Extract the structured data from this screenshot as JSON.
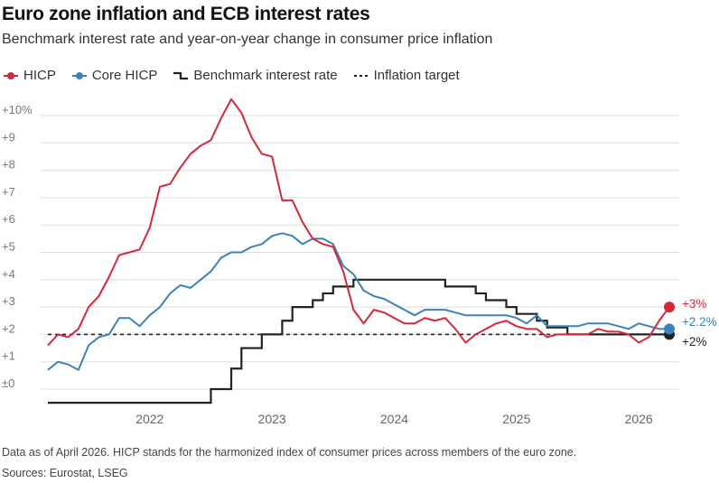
{
  "header": {
    "title": "Euro zone inflation and ECB interest rates",
    "subtitle": "Benchmark interest rate and year-on-year change in consumer price inflation"
  },
  "footer": {
    "note": "Data as of April 2026. HICP stands for the harmonized index of consumer prices across members of the euro zone.",
    "source": "Sources: Eurostat, LSEG"
  },
  "colors": {
    "hicp": "#d62839",
    "core": "#3a83b8",
    "rate": "#222222",
    "target": "#222222",
    "grid": "#dddddd"
  },
  "chart_data": {
    "type": "line",
    "title": "Euro zone inflation and ECB interest rates",
    "x_range": [
      "2021-03",
      "2026-04"
    ],
    "ylim": [
      -0.5,
      10.5
    ],
    "y_ticks": [
      {
        "value": 0,
        "label": "±0"
      },
      {
        "value": 1,
        "label": "+1"
      },
      {
        "value": 2,
        "label": "+2"
      },
      {
        "value": 3,
        "label": "+3"
      },
      {
        "value": 4,
        "label": "+4"
      },
      {
        "value": 5,
        "label": "+5"
      },
      {
        "value": 6,
        "label": "+6"
      },
      {
        "value": 7,
        "label": "+7"
      },
      {
        "value": 8,
        "label": "+8"
      },
      {
        "value": 9,
        "label": "+9"
      },
      {
        "value": 10,
        "label": "+10%"
      }
    ],
    "x_ticks": [
      {
        "value": "2022-01",
        "label": "2022"
      },
      {
        "value": "2023-01",
        "label": "2023"
      },
      {
        "value": "2024-01",
        "label": "2024"
      },
      {
        "value": "2025-01",
        "label": "2025"
      },
      {
        "value": "2026-01",
        "label": "2026"
      }
    ],
    "legend": {
      "position": "top-left"
    },
    "grid": {
      "horizontal": true,
      "vertical": false
    },
    "series": [
      {
        "name": "HICP",
        "key": "hicp",
        "style": "line-dot",
        "end_label": "+3%",
        "points": [
          [
            "2021-03",
            1.6
          ],
          [
            "2021-04",
            2.0
          ],
          [
            "2021-05",
            1.9
          ],
          [
            "2021-06",
            2.2
          ],
          [
            "2021-07",
            3.0
          ],
          [
            "2021-08",
            3.4
          ],
          [
            "2021-09",
            4.1
          ],
          [
            "2021-10",
            4.9
          ],
          [
            "2021-11",
            5.0
          ],
          [
            "2021-12",
            5.1
          ],
          [
            "2022-01",
            5.9
          ],
          [
            "2022-02",
            7.4
          ],
          [
            "2022-03",
            7.5
          ],
          [
            "2022-04",
            8.1
          ],
          [
            "2022-05",
            8.6
          ],
          [
            "2022-06",
            8.9
          ],
          [
            "2022-07",
            9.1
          ],
          [
            "2022-08",
            9.9
          ],
          [
            "2022-09",
            10.6
          ],
          [
            "2022-10",
            10.1
          ],
          [
            "2022-11",
            9.2
          ],
          [
            "2022-12",
            8.6
          ],
          [
            "2023-01",
            8.5
          ],
          [
            "2023-02",
            6.9
          ],
          [
            "2023-03",
            6.9
          ],
          [
            "2023-04",
            6.1
          ],
          [
            "2023-05",
            5.5
          ],
          [
            "2023-06",
            5.3
          ],
          [
            "2023-07",
            5.2
          ],
          [
            "2023-08",
            4.3
          ],
          [
            "2023-09",
            2.9
          ],
          [
            "2023-10",
            2.4
          ],
          [
            "2023-11",
            2.9
          ],
          [
            "2023-12",
            2.8
          ],
          [
            "2024-01",
            2.6
          ],
          [
            "2024-02",
            2.4
          ],
          [
            "2024-03",
            2.4
          ],
          [
            "2024-04",
            2.6
          ],
          [
            "2024-05",
            2.5
          ],
          [
            "2024-06",
            2.6
          ],
          [
            "2024-07",
            2.2
          ],
          [
            "2024-08",
            1.7
          ],
          [
            "2024-09",
            2.0
          ],
          [
            "2024-10",
            2.2
          ],
          [
            "2024-11",
            2.4
          ],
          [
            "2024-12",
            2.5
          ],
          [
            "2025-01",
            2.3
          ],
          [
            "2025-02",
            2.2
          ],
          [
            "2025-03",
            2.2
          ],
          [
            "2025-04",
            1.9
          ],
          [
            "2025-05",
            2.0
          ],
          [
            "2025-06",
            2.0
          ],
          [
            "2025-07",
            2.0
          ],
          [
            "2025-08",
            2.0
          ],
          [
            "2025-09",
            2.2
          ],
          [
            "2025-10",
            2.1
          ],
          [
            "2025-11",
            2.1
          ],
          [
            "2025-12",
            2.0
          ],
          [
            "2026-01",
            1.7
          ],
          [
            "2026-02",
            1.9
          ],
          [
            "2026-03",
            2.5
          ],
          [
            "2026-04",
            3.0
          ]
        ]
      },
      {
        "name": "Core HICP",
        "key": "core",
        "style": "line-dot",
        "end_label": "+2.2%",
        "points": [
          [
            "2021-03",
            0.7
          ],
          [
            "2021-04",
            1.0
          ],
          [
            "2021-05",
            0.9
          ],
          [
            "2021-06",
            0.7
          ],
          [
            "2021-07",
            1.6
          ],
          [
            "2021-08",
            1.9
          ],
          [
            "2021-09",
            2.0
          ],
          [
            "2021-10",
            2.6
          ],
          [
            "2021-11",
            2.6
          ],
          [
            "2021-12",
            2.3
          ],
          [
            "2022-01",
            2.7
          ],
          [
            "2022-02",
            3.0
          ],
          [
            "2022-03",
            3.5
          ],
          [
            "2022-04",
            3.8
          ],
          [
            "2022-05",
            3.7
          ],
          [
            "2022-06",
            4.0
          ],
          [
            "2022-07",
            4.3
          ],
          [
            "2022-08",
            4.8
          ],
          [
            "2022-09",
            5.0
          ],
          [
            "2022-10",
            5.0
          ],
          [
            "2022-11",
            5.2
          ],
          [
            "2022-12",
            5.3
          ],
          [
            "2023-01",
            5.6
          ],
          [
            "2023-02",
            5.7
          ],
          [
            "2023-03",
            5.6
          ],
          [
            "2023-04",
            5.3
          ],
          [
            "2023-05",
            5.5
          ],
          [
            "2023-06",
            5.5
          ],
          [
            "2023-07",
            5.3
          ],
          [
            "2023-08",
            4.5
          ],
          [
            "2023-09",
            4.2
          ],
          [
            "2023-10",
            3.6
          ],
          [
            "2023-11",
            3.4
          ],
          [
            "2023-12",
            3.3
          ],
          [
            "2024-01",
            3.1
          ],
          [
            "2024-02",
            2.9
          ],
          [
            "2024-03",
            2.7
          ],
          [
            "2024-04",
            2.9
          ],
          [
            "2024-05",
            2.9
          ],
          [
            "2024-06",
            2.9
          ],
          [
            "2024-07",
            2.8
          ],
          [
            "2024-08",
            2.7
          ],
          [
            "2024-09",
            2.7
          ],
          [
            "2024-10",
            2.7
          ],
          [
            "2024-11",
            2.7
          ],
          [
            "2024-12",
            2.7
          ],
          [
            "2025-01",
            2.6
          ],
          [
            "2025-02",
            2.4
          ],
          [
            "2025-03",
            2.7
          ],
          [
            "2025-04",
            2.3
          ],
          [
            "2025-05",
            2.3
          ],
          [
            "2025-06",
            2.3
          ],
          [
            "2025-07",
            2.3
          ],
          [
            "2025-08",
            2.4
          ],
          [
            "2025-09",
            2.4
          ],
          [
            "2025-10",
            2.4
          ],
          [
            "2025-11",
            2.3
          ],
          [
            "2025-12",
            2.2
          ],
          [
            "2026-01",
            2.4
          ],
          [
            "2026-02",
            2.3
          ],
          [
            "2026-03",
            2.2
          ],
          [
            "2026-04",
            2.2
          ]
        ]
      },
      {
        "name": "Benchmark interest rate",
        "key": "rate",
        "style": "step",
        "end_label": "+2%",
        "points": [
          [
            "2021-03",
            -0.5
          ],
          [
            "2022-07",
            0.0
          ],
          [
            "2022-09",
            0.75
          ],
          [
            "2022-10",
            1.5
          ],
          [
            "2022-12",
            2.0
          ],
          [
            "2023-02",
            2.5
          ],
          [
            "2023-03",
            3.0
          ],
          [
            "2023-05",
            3.25
          ],
          [
            "2023-06",
            3.5
          ],
          [
            "2023-07",
            3.75
          ],
          [
            "2023-09",
            4.0
          ],
          [
            "2024-06",
            3.75
          ],
          [
            "2024-09",
            3.5
          ],
          [
            "2024-10",
            3.25
          ],
          [
            "2024-12",
            3.0
          ],
          [
            "2025-01",
            2.75
          ],
          [
            "2025-03",
            2.5
          ],
          [
            "2025-04",
            2.25
          ],
          [
            "2025-06",
            2.0
          ],
          [
            "2026-04",
            2.0
          ]
        ]
      },
      {
        "name": "Inflation target",
        "key": "target",
        "style": "dashed",
        "value": 2.0
      }
    ]
  }
}
